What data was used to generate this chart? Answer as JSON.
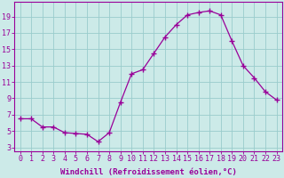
{
  "x": [
    0,
    1,
    2,
    3,
    4,
    5,
    6,
    7,
    8,
    9,
    10,
    11,
    12,
    13,
    14,
    15,
    16,
    17,
    18,
    19,
    20,
    21,
    22,
    23
  ],
  "y": [
    6.5,
    6.5,
    5.5,
    5.5,
    4.8,
    4.7,
    4.6,
    3.7,
    4.8,
    8.5,
    12.0,
    12.5,
    14.5,
    16.5,
    18.0,
    19.2,
    19.5,
    19.7,
    19.2,
    16.0,
    13.0,
    11.5,
    9.8,
    8.8
  ],
  "line_color": "#990099",
  "marker": "+",
  "marker_size": 4,
  "bg_color": "#cceae8",
  "grid_color": "#99cccc",
  "axis_color": "#990099",
  "xlabel": "Windchill (Refroidissement éolien,°C)",
  "ylabel_ticks": [
    3,
    5,
    7,
    9,
    11,
    13,
    15,
    17,
    19
  ],
  "xlim": [
    -0.5,
    23.5
  ],
  "ylim": [
    2.5,
    20.8
  ],
  "label_fontsize": 6.5,
  "tick_fontsize": 6.0
}
